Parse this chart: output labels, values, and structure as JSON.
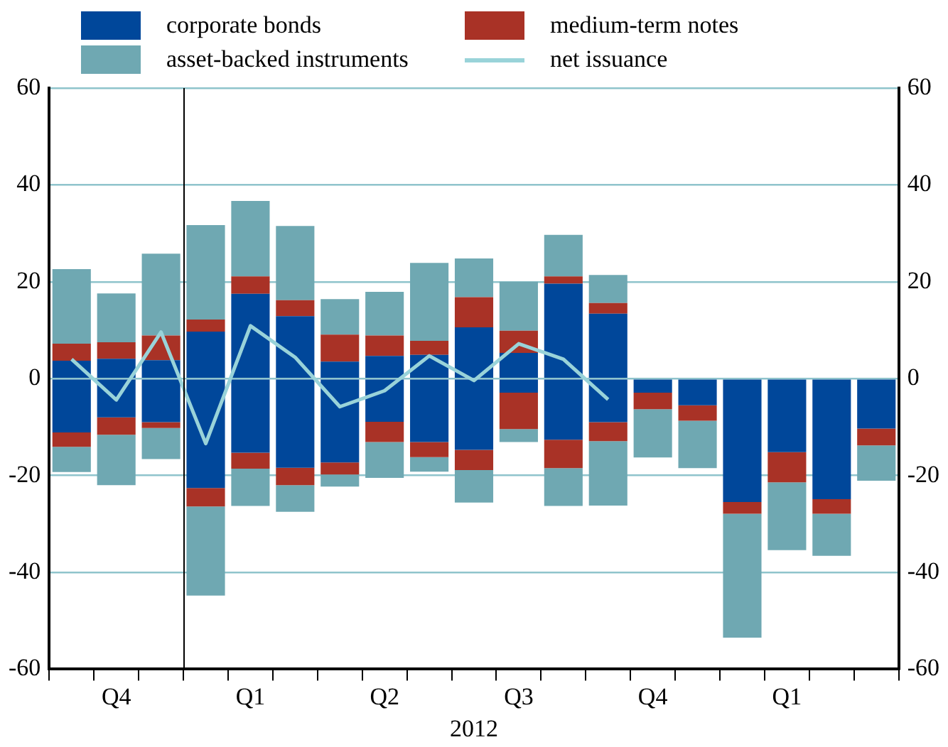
{
  "chart_data": {
    "type": "bar",
    "stacked": true,
    "xlabel": "2012",
    "categories": [
      null,
      "Q4",
      null,
      null,
      "Q1",
      null,
      null,
      "Q2",
      null,
      null,
      "Q3",
      null,
      null,
      "Q4",
      null,
      null,
      "Q1",
      null,
      null
    ],
    "series": [
      {
        "name": "corporate bonds",
        "color": "#00479a",
        "values": [
          3.7,
          4.1,
          3.8,
          9.7,
          17.5,
          12.9,
          3.5,
          4.7,
          4.9,
          10.6,
          5.3,
          19.6,
          13.4,
          0,
          0,
          0,
          0,
          0,
          0
        ]
      },
      {
        "name": "medium-term notes",
        "color": "#a93226",
        "values": [
          3.5,
          3.4,
          5.1,
          2.5,
          3.6,
          3.3,
          5.6,
          4.2,
          2.9,
          6.2,
          4.6,
          1.5,
          2.2,
          0,
          0,
          0,
          0,
          0,
          0
        ]
      },
      {
        "name": "asset-backed instruments",
        "color": "#6fa8b2",
        "values": [
          15.4,
          10.1,
          16.9,
          19.5,
          15.6,
          15.3,
          7.3,
          9.0,
          16.1,
          8.0,
          10.1,
          8.6,
          5.8,
          0,
          0,
          0,
          0,
          0,
          0
        ]
      },
      {
        "color": "#00479a",
        "values": [
          -11.1,
          -8.0,
          -9.0,
          -22.6,
          -15.3,
          -18.4,
          -17.3,
          -8.9,
          -13.1,
          -14.7,
          -2.9,
          -12.6,
          -9.0,
          -2.9,
          -5.5,
          -25.5,
          -15.2,
          -24.9,
          -10.3
        ]
      },
      {
        "color": "#a93226",
        "values": [
          -3.0,
          -3.6,
          -1.2,
          -3.8,
          -3.3,
          -3.6,
          -2.5,
          -4.2,
          -3.1,
          -4.2,
          -7.5,
          -5.9,
          -3.9,
          -3.4,
          -3.2,
          -2.4,
          -6.2,
          -3.0,
          -3.5
        ]
      },
      {
        "color": "#6fa8b2",
        "values": [
          -5.2,
          -10.4,
          -6.4,
          -18.4,
          -7.7,
          -5.5,
          -2.5,
          -7.4,
          -3.0,
          -6.7,
          -2.7,
          -7.8,
          -13.3,
          -10.0,
          -9.8,
          -25.6,
          -14.0,
          -8.7,
          -7.3
        ]
      },
      {
        "name": "net issuance",
        "type": "line",
        "color": "#99d3d9",
        "values": [
          4,
          -4.4,
          9.6,
          -13.4,
          10.9,
          4.4,
          -5.8,
          -2.5,
          4.7,
          -0.4,
          7.2,
          4.0,
          -4.3,
          null,
          null,
          null,
          null,
          null,
          null
        ]
      }
    ],
    "ylim": [
      -60,
      60
    ],
    "yticks": [
      -60,
      -40,
      -20,
      0,
      20,
      40,
      60
    ],
    "y2lim": [
      -60,
      60
    ],
    "y2ticks": [
      -60,
      -40,
      -20,
      0,
      20,
      40,
      60
    ],
    "grid": "y",
    "legend": "top",
    "marker": "none"
  }
}
